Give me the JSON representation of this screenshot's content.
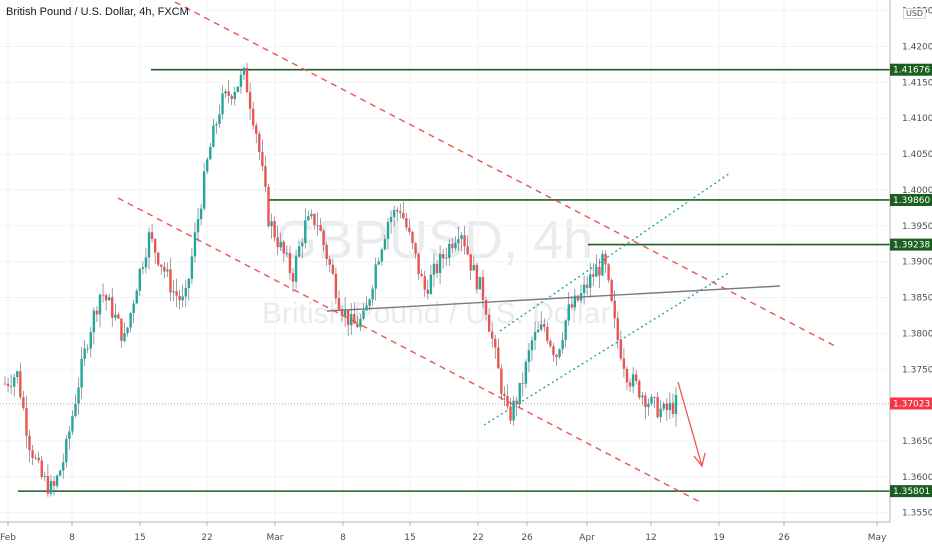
{
  "title": "British Pound / U.S. Dollar, 4h, FXCM",
  "watermark": {
    "symbol": "GBPUSD, 4h",
    "name": "British Pound / U.S. Dollar"
  },
  "currency_label": "USD",
  "chart_data": {
    "type": "candlestick",
    "ylim": [
      1.3505,
      1.4262
    ],
    "y_ticks": [
      "1.42500",
      "1.42000",
      "1.41500",
      "1.41000",
      "1.40500",
      "1.40000",
      "1.39500",
      "1.39000",
      "1.38500",
      "1.38000",
      "1.37500",
      "1.37000",
      "1.36500",
      "1.36000",
      "1.35500"
    ],
    "x_ticks": [
      "Feb",
      "8",
      "15",
      "22",
      "Mar",
      "8",
      "15",
      "22",
      "26",
      "Apr",
      "12",
      "19",
      "26",
      "May"
    ],
    "ohlc_path": [
      1.373,
      1.3745,
      1.365,
      1.36,
      1.358,
      1.363,
      1.372,
      1.38,
      1.386,
      1.383,
      1.379,
      1.387,
      1.3935,
      1.39,
      1.386,
      1.384,
      1.395,
      1.405,
      1.412,
      1.414,
      1.416,
      1.408,
      1.396,
      1.392,
      1.388,
      1.395,
      1.396,
      1.39,
      1.384,
      1.381,
      1.382,
      1.39,
      1.396,
      1.3975,
      1.392,
      1.386,
      1.389,
      1.392,
      1.395,
      1.389,
      1.385,
      1.376,
      1.368,
      1.372,
      1.379,
      1.381,
      1.377,
      1.383,
      1.385,
      1.388,
      1.39,
      1.38,
      1.374,
      1.372,
      1.37,
      1.369,
      1.3702
    ],
    "levels": [
      {
        "label": "1.41676",
        "value": 1.41676,
        "color": "#1b5e20"
      },
      {
        "label": "1.39860",
        "value": 1.3986,
        "color": "#1b5e20"
      },
      {
        "label": "1.39238",
        "value": 1.39238,
        "color": "#1b5e20"
      },
      {
        "label": "1.35801",
        "value": 1.35801,
        "color": "#1b5e20"
      }
    ],
    "last_price": {
      "label": "1.37023",
      "value": 1.37023,
      "color": "#f23645"
    },
    "colors": {
      "up": "#26a69a",
      "down": "#ef5350",
      "wick": "#5d606b",
      "resistance": "#1b5e20",
      "channel": "#ef5350",
      "rising_channel": "#26a69a",
      "trendline": "#787b86"
    }
  }
}
